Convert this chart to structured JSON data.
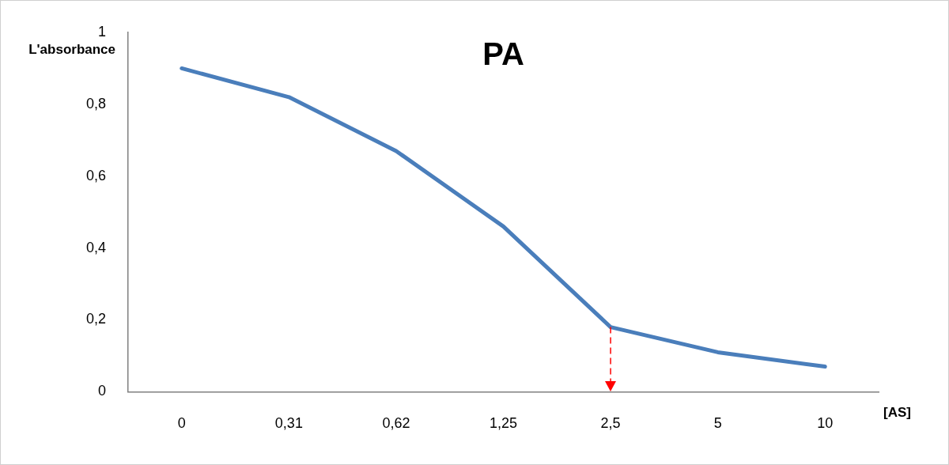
{
  "chart_data": {
    "type": "line",
    "title": "PA",
    "xlabel": "[AS]",
    "ylabel": "L'absorbance",
    "categories": [
      "0",
      "0,31",
      "0,62",
      "1,25",
      "2,5",
      "5",
      "10"
    ],
    "series": [
      {
        "color": "#4a7ebb",
        "values": [
          0.9,
          0.82,
          0.67,
          0.46,
          0.18,
          0.11,
          0.07
        ]
      }
    ],
    "ylim": [
      0,
      1
    ],
    "yticks": [
      0,
      {
        "value": 0.2,
        "label": "0,2"
      },
      {
        "value": 0.4,
        "label": "0,4"
      },
      {
        "value": 0.6,
        "label": "0,6"
      },
      {
        "value": 0.8,
        "label": "0,8"
      },
      1
    ],
    "ref_lines": [
      {
        "axis": "x",
        "value": "2,5",
        "color": "#ff0000",
        "line_style": "dashed"
      }
    ],
    "grid": false,
    "legend": false,
    "marker": "none",
    "line_style": "solid"
  }
}
